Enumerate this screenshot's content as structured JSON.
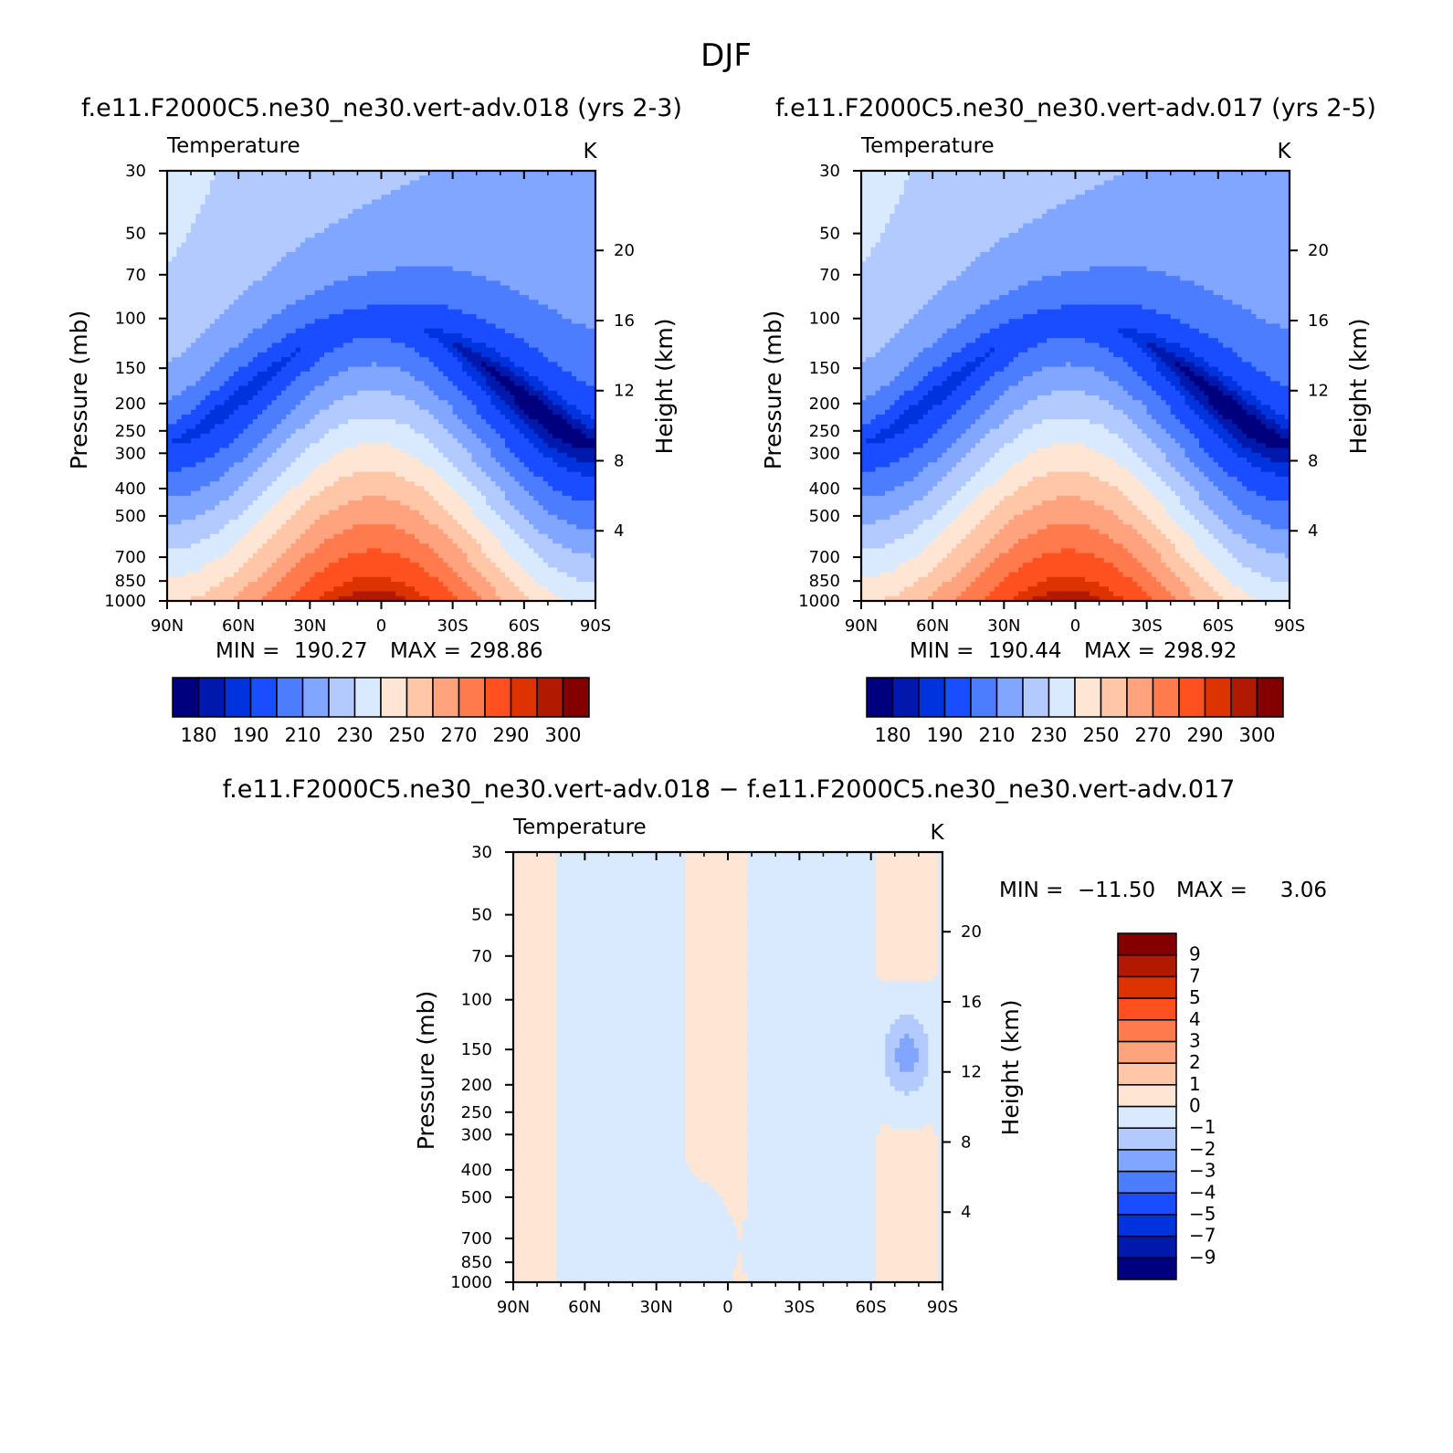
{
  "figure": {
    "title": "DJF"
  },
  "colors": {
    "abs_palette": [
      "#00007f",
      "#0019ad",
      "#0033dd",
      "#1a4dff",
      "#4d7dff",
      "#80a6ff",
      "#b2caff",
      "#d9eaff",
      "#ffe6d4",
      "#ffc6a8",
      "#ffa27e",
      "#ff7b4d",
      "#ff5020",
      "#dd3300",
      "#b21a00",
      "#840000"
    ],
    "diff_palette": [
      "#00007f",
      "#0019ad",
      "#0033dd",
      "#1a4dff",
      "#4d7dff",
      "#80a6ff",
      "#b2caff",
      "#d9eaff",
      "#ffe6d4",
      "#ffc6a8",
      "#ffa27e",
      "#ff7b4d",
      "#ff5020",
      "#dd3300",
      "#b21a00",
      "#840000"
    ]
  },
  "chart_data": [
    {
      "type": "contour",
      "title": "f.e11.F2000C5.ne30_ne30.vert-adv.018 (yrs 2-3)",
      "left_title": "Temperature",
      "units": "K",
      "xlabel": "",
      "ylabel": "Pressure (mb)",
      "y2label": "Height (km)",
      "x_ticks": [
        "90N",
        "60N",
        "30N",
        "0",
        "30S",
        "60S",
        "90S"
      ],
      "y_ticks": [
        30,
        50,
        70,
        100,
        150,
        200,
        250,
        300,
        400,
        500,
        700,
        850,
        1000
      ],
      "y2_ticks": [
        4,
        8,
        12,
        16,
        20
      ],
      "ylim": [
        1000,
        30
      ],
      "stats": {
        "min_label": "MIN =",
        "min": "190.27",
        "max_label": "MAX =",
        "max": "298.86"
      },
      "colorbar": {
        "levels": [
          180,
          190,
          210,
          230,
          250,
          270,
          290,
          300
        ]
      },
      "field": {
        "tropopause_min": 190,
        "surface_max": 298.9
      }
    },
    {
      "type": "contour",
      "title": "f.e11.F2000C5.ne30_ne30.vert-adv.017 (yrs 2-5)",
      "left_title": "Temperature",
      "units": "K",
      "xlabel": "",
      "ylabel": "Pressure (mb)",
      "y2label": "Height (km)",
      "x_ticks": [
        "90N",
        "60N",
        "30N",
        "0",
        "30S",
        "60S",
        "90S"
      ],
      "y_ticks": [
        30,
        50,
        70,
        100,
        150,
        200,
        250,
        300,
        400,
        500,
        700,
        850,
        1000
      ],
      "y2_ticks": [
        4,
        8,
        12,
        16,
        20
      ],
      "ylim": [
        1000,
        30
      ],
      "stats": {
        "min_label": "MIN =",
        "min": "190.44",
        "max_label": "MAX =",
        "max": "298.92"
      },
      "colorbar": {
        "levels": [
          180,
          190,
          210,
          230,
          250,
          270,
          290,
          300
        ]
      },
      "field": {
        "tropopause_min": 190,
        "surface_max": 298.9
      }
    },
    {
      "type": "contour",
      "title": "f.e11.F2000C5.ne30_ne30.vert-adv.018 − f.e11.F2000C5.ne30_ne30.vert-adv.017",
      "left_title": "Temperature",
      "units": "K",
      "xlabel": "",
      "ylabel": "Pressure (mb)",
      "y2label": "Height (km)",
      "x_ticks": [
        "90N",
        "60N",
        "30N",
        "0",
        "30S",
        "60S",
        "90S"
      ],
      "y_ticks": [
        30,
        50,
        70,
        100,
        150,
        200,
        250,
        300,
        400,
        500,
        700,
        850,
        1000
      ],
      "y2_ticks": [
        4,
        8,
        12,
        16,
        20
      ],
      "ylim": [
        1000,
        30
      ],
      "stats": {
        "min_label": "MIN =",
        "min": "−11.50",
        "max_label": "MAX =",
        "max": "3.06"
      },
      "colorbar": {
        "levels": [
          "9",
          "7",
          "5",
          "4",
          "3",
          "2",
          "1",
          "0",
          "−1",
          "−2",
          "−3",
          "−4",
          "−5",
          "−7",
          "−9"
        ]
      }
    }
  ]
}
